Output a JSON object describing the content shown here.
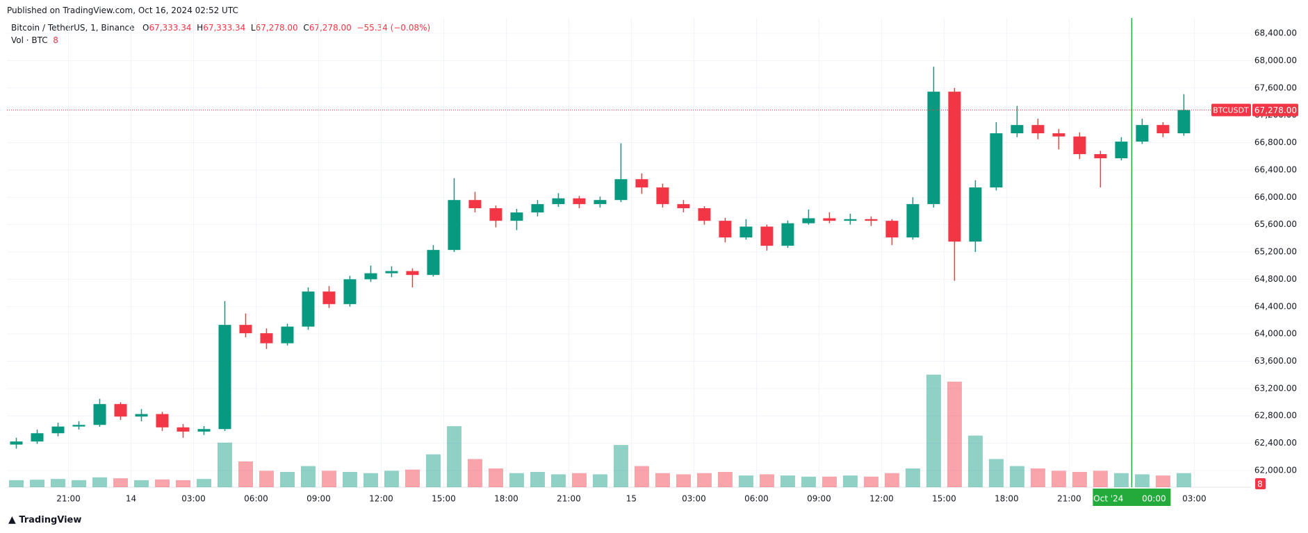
{
  "header": {
    "published": "Published on TradingView.com, Oct 16, 2024 02:52 UTC"
  },
  "legend": {
    "symbol": "Bitcoin / TetherUS, 1, Binance",
    "o_label": "O",
    "o": "67,333.34",
    "h_label": "H",
    "h": "67,333.34",
    "l_label": "L",
    "l": "67,278.00",
    "c_label": "C",
    "c": "67,278.00",
    "change": "−55.34 (−0.08%)",
    "vol_label": "Vol · BTC",
    "vol": "8"
  },
  "footer": {
    "brand": "TradingView"
  },
  "chart_data": {
    "type": "candlestick",
    "up_color": "#089981",
    "down_color": "#f23645",
    "x": [
      -6,
      -5,
      -4,
      -3,
      -2,
      -1,
      0,
      1,
      2,
      3,
      4,
      5,
      6,
      7,
      8,
      9,
      10,
      11,
      12,
      13,
      14,
      15,
      16,
      17,
      18,
      19,
      20,
      21,
      22,
      23,
      24,
      25,
      26,
      27,
      28,
      29,
      30,
      31,
      32,
      33,
      34,
      35,
      36,
      37,
      38,
      39,
      40,
      41,
      42,
      43,
      44,
      45,
      46,
      47,
      48,
      49,
      50
    ],
    "open": [
      62380,
      62425,
      62546,
      62644,
      62668,
      62973,
      62790,
      62827,
      62632,
      62570,
      62607,
      64132,
      64010,
      63863,
      64107,
      64620,
      64436,
      64800,
      64888,
      64920,
      64863,
      65229,
      65960,
      65840,
      65656,
      65778,
      65900,
      65985,
      65900,
      65960,
      66265,
      66144,
      65900,
      65840,
      65656,
      65412,
      65571,
      65290,
      65620,
      65693,
      65656,
      65680,
      65656,
      65412,
      65900,
      67546,
      65351,
      66144,
      66937,
      67058,
      66937,
      66890,
      66632,
      66571,
      66815,
      67058,
      66937
    ],
    "high": [
      62480,
      62600,
      62700,
      62720,
      63050,
      63000,
      62900,
      62860,
      62680,
      62650,
      64480,
      64300,
      64080,
      64150,
      64680,
      64700,
      64850,
      65000,
      64990,
      64960,
      65300,
      66280,
      66080,
      65880,
      65830,
      65960,
      66060,
      66020,
      66010,
      66790,
      66350,
      66200,
      65960,
      65870,
      65700,
      65680,
      65600,
      65660,
      65820,
      65780,
      65760,
      65720,
      65680,
      66000,
      67912,
      67600,
      66250,
      67100,
      67339,
      67150,
      67000,
      66950,
      66680,
      66880,
      67150,
      67100,
      67510
    ],
    "low": [
      62320,
      62390,
      62500,
      62600,
      62640,
      62740,
      62720,
      62580,
      62480,
      62520,
      62580,
      63950,
      63780,
      63830,
      64060,
      64380,
      64400,
      64760,
      64830,
      64680,
      64840,
      65200,
      65780,
      65560,
      65520,
      65720,
      65860,
      65840,
      65850,
      65930,
      66050,
      65850,
      65780,
      65600,
      65340,
      65380,
      65220,
      65260,
      65600,
      65620,
      65600,
      65580,
      65300,
      65380,
      65850,
      64778,
      65200,
      66100,
      66880,
      66850,
      66700,
      66560,
      66144,
      66540,
      66780,
      66880,
      66900
    ],
    "close": [
      62425,
      62546,
      62644,
      62668,
      62973,
      62790,
      62827,
      62632,
      62570,
      62607,
      64132,
      64010,
      63863,
      64107,
      64620,
      64436,
      64800,
      64888,
      64920,
      64863,
      65229,
      65960,
      65840,
      65656,
      65778,
      65900,
      65985,
      65900,
      65960,
      66265,
      66144,
      65900,
      65840,
      65656,
      65412,
      65571,
      65290,
      65620,
      65693,
      65656,
      65680,
      65656,
      65412,
      65900,
      67546,
      65351,
      66144,
      66937,
      67058,
      66937,
      66890,
      66632,
      66571,
      66815,
      67058,
      66937,
      67278
    ],
    "volume": [
      300,
      320,
      350,
      300,
      420,
      380,
      300,
      330,
      300,
      350,
      1900,
      1100,
      700,
      650,
      900,
      700,
      650,
      600,
      700,
      750,
      1400,
      2600,
      1200,
      800,
      600,
      650,
      550,
      600,
      550,
      1800,
      900,
      600,
      550,
      600,
      650,
      500,
      550,
      500,
      450,
      450,
      500,
      450,
      600,
      800,
      4800,
      4500,
      2200,
      1200,
      900,
      800,
      700,
      650,
      700,
      600,
      550,
      500,
      600
    ],
    "xlim": [
      -5.95,
      53.72
    ],
    "ylim": [
      61756,
      68624
    ],
    "y2lim": [
      0,
      20000
    ],
    "grid": true,
    "yticks": [
      {
        "value": 62000,
        "label": "62,000.00"
      },
      {
        "value": 62400,
        "label": "62,400.00"
      },
      {
        "value": 62800,
        "label": "62,800.00"
      },
      {
        "value": 63200,
        "label": "63,200.00"
      },
      {
        "value": 63600,
        "label": "63,600.00"
      },
      {
        "value": 64000,
        "label": "64,000.00"
      },
      {
        "value": 64400,
        "label": "64,400.00"
      },
      {
        "value": 64800,
        "label": "64,800.00"
      },
      {
        "value": 65200,
        "label": "65,200.00"
      },
      {
        "value": 65600,
        "label": "65,600.00"
      },
      {
        "value": 66000,
        "label": "66,000.00"
      },
      {
        "value": 66400,
        "label": "66,400.00"
      },
      {
        "value": 66800,
        "label": "66,800.00"
      },
      {
        "value": 67200,
        "label": "67,200.00"
      },
      {
        "value": 67600,
        "label": "67,600.00"
      },
      {
        "value": 68000,
        "label": "68,000.00"
      },
      {
        "value": 68400,
        "label": "68,400.00"
      }
    ],
    "xticks": [
      {
        "value": -3,
        "label": "21:00"
      },
      {
        "value": 0,
        "label": "14"
      },
      {
        "value": 3,
        "label": "03:00"
      },
      {
        "value": 6,
        "label": "06:00"
      },
      {
        "value": 9,
        "label": "09:00"
      },
      {
        "value": 12,
        "label": "12:00"
      },
      {
        "value": 15,
        "label": "15:00"
      },
      {
        "value": 18,
        "label": "18:00"
      },
      {
        "value": 21,
        "label": "21:00"
      },
      {
        "value": 24,
        "label": "15"
      },
      {
        "value": 27,
        "label": "03:00"
      },
      {
        "value": 30,
        "label": "06:00"
      },
      {
        "value": 33,
        "label": "09:00"
      },
      {
        "value": 36,
        "label": "12:00"
      },
      {
        "value": 39,
        "label": "15:00"
      },
      {
        "value": 42,
        "label": "18:00"
      },
      {
        "value": 45,
        "label": "21:00"
      },
      {
        "value": 51,
        "label": "03:00"
      }
    ],
    "last_price": {
      "value": 67278,
      "label": "67,278.00",
      "symbol": "BTCUSDT",
      "color": "#f23645"
    },
    "last_volume": {
      "value": 8,
      "label": "8"
    },
    "crosshair": {
      "value": 48,
      "date": "16 Oct '24",
      "time": "00:00",
      "color": "#22ab3b"
    }
  }
}
